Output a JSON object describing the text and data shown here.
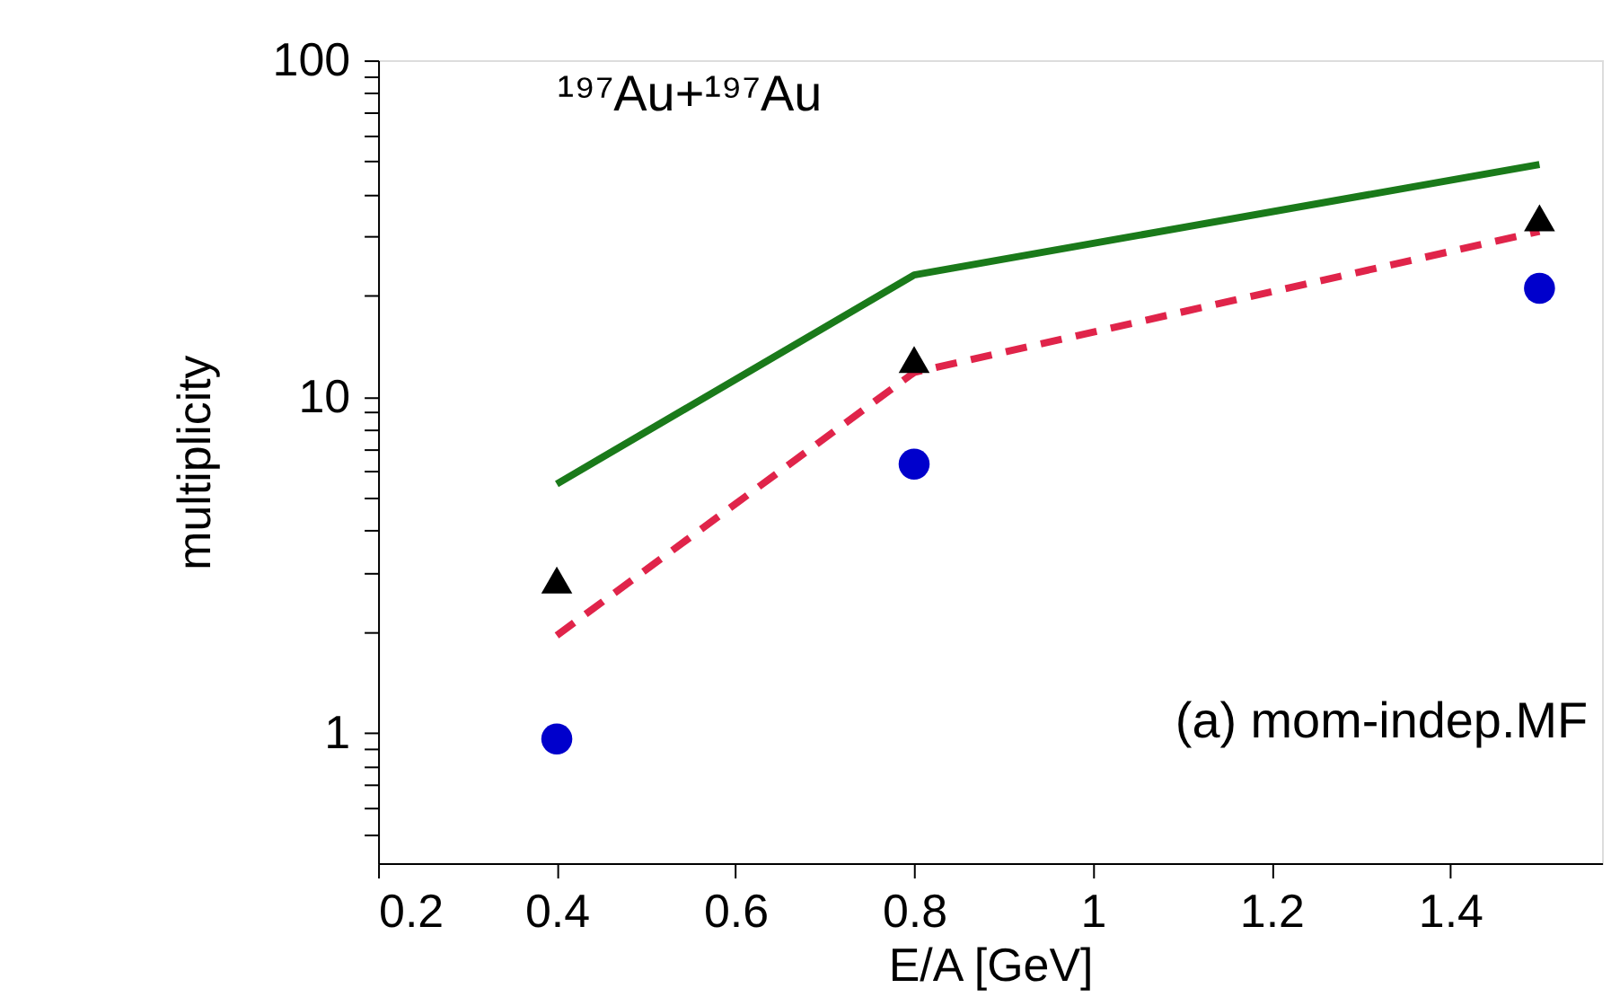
{
  "chart_data": {
    "type": "line",
    "xlabel": "E/A [GeV]",
    "ylabel": "multiplicity",
    "log": "y",
    "grid": false,
    "x": [
      0.4,
      0.8,
      1.5
    ],
    "xlim": [
      0.2,
      1.57
    ],
    "xticks": [
      0.2,
      0.4,
      0.6,
      0.8,
      1,
      1.2,
      1.4
    ],
    "ylim": [
      0.41,
      100
    ],
    "yticks": [
      {
        "value": 0.5,
        "label": null
      },
      {
        "value": 0.6,
        "label": null
      },
      {
        "value": 0.7,
        "label": null
      },
      {
        "value": 0.8,
        "label": null
      },
      {
        "value": 0.9,
        "label": null
      },
      1,
      {
        "value": 2,
        "label": null
      },
      {
        "value": 3,
        "label": null
      },
      {
        "value": 4,
        "label": null
      },
      {
        "value": 5,
        "label": null
      },
      {
        "value": 6,
        "label": null
      },
      {
        "value": 7,
        "label": null
      },
      {
        "value": 8,
        "label": null
      },
      {
        "value": 9,
        "label": null
      },
      10,
      {
        "value": 20,
        "label": null
      },
      {
        "value": 30,
        "label": null
      },
      {
        "value": 40,
        "label": null
      },
      {
        "value": 50,
        "label": null
      },
      {
        "value": 60,
        "label": null
      },
      {
        "value": 70,
        "label": null
      },
      {
        "value": 80,
        "label": null
      },
      {
        "value": 90,
        "label": null
      },
      100
    ],
    "series": [
      {
        "color": "#1a7a1a",
        "line_style": "solid",
        "marker": "none",
        "values": [
          5.5,
          23,
          49
        ]
      },
      {
        "color": "#e0244a",
        "line_style": "dashed",
        "marker": "none",
        "values": [
          1.95,
          11.8,
          31
        ]
      },
      {
        "type": "scatter",
        "color": "#000000",
        "marker": "triangle",
        "values": [
          2.85,
          12.9,
          34
        ]
      },
      {
        "type": "scatter",
        "color": "#0000cc",
        "marker": "circle",
        "values": [
          0.96,
          6.3,
          21
        ]
      }
    ],
    "annotations": [
      "¹⁹⁷Au+¹⁹⁷Au",
      "(a) mom-indep.MF"
    ]
  }
}
